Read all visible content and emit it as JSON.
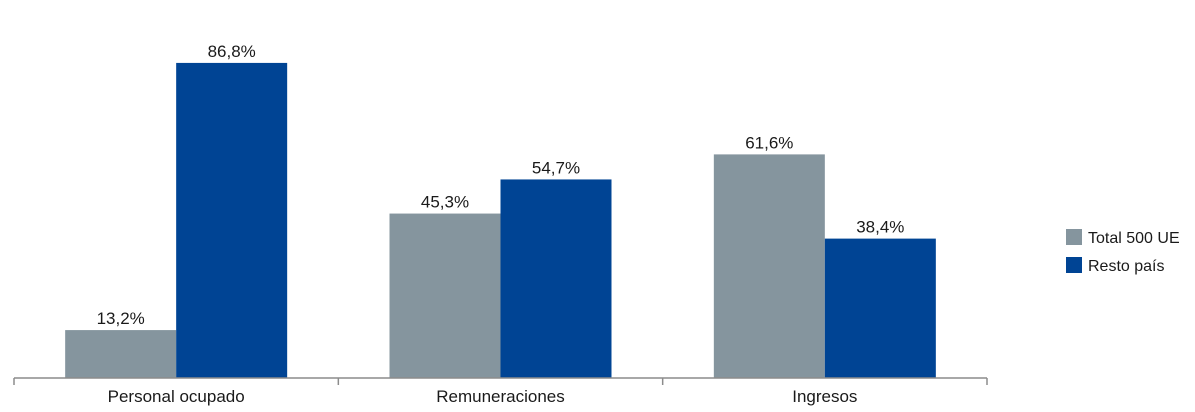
{
  "chart_data": {
    "type": "bar",
    "categories": [
      "Personal ocupado",
      "Remuneraciones",
      "Ingresos"
    ],
    "series": [
      {
        "name": "Total 500 UE",
        "values": [
          13.2,
          45.3,
          61.6
        ],
        "labels": [
          "13,2%",
          "45,3%",
          "61,6%"
        ],
        "color": "#85959e"
      },
      {
        "name": "Resto país",
        "values": [
          86.8,
          54.7,
          38.4
        ],
        "labels": [
          "86,8%",
          "54,7%",
          "38,4%"
        ],
        "color": "#004494"
      }
    ],
    "ylim": [
      0,
      100
    ],
    "grid": false,
    "legend_position": "right"
  }
}
